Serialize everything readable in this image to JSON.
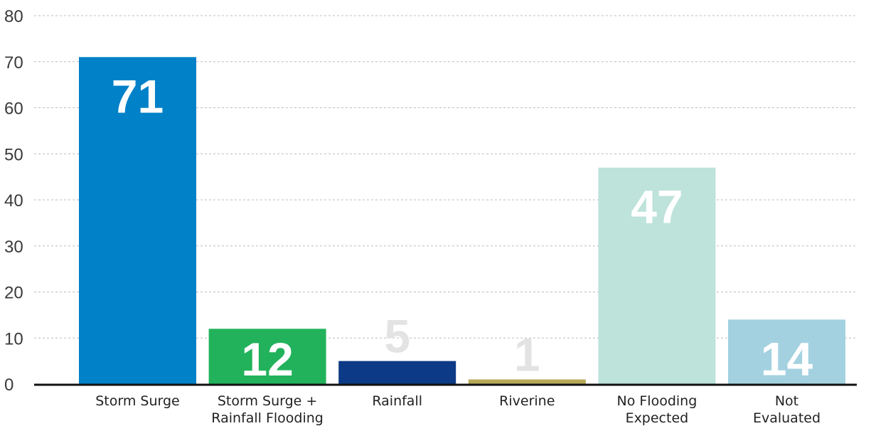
{
  "chart_data": {
    "type": "bar",
    "title": "",
    "xlabel": "",
    "ylabel": "",
    "ylim": [
      0,
      80
    ],
    "yticks": [
      0,
      10,
      20,
      30,
      40,
      50,
      60,
      70,
      80
    ],
    "grid": true,
    "legend": "none",
    "categories": [
      [
        "Storm Surge"
      ],
      [
        "Storm Surge +",
        "Rainfall Flooding"
      ],
      [
        "Rainfall"
      ],
      [
        "Riverine"
      ],
      [
        "No Flooding",
        "Expected"
      ],
      [
        "Not",
        "Evaluated"
      ]
    ],
    "values": [
      71,
      12,
      5,
      1,
      47,
      14
    ],
    "bar_colors": [
      "#0081c8",
      "#22b25b",
      "#0c3a86",
      "#b8a95a",
      "#bde3da",
      "#a3d1e0"
    ],
    "label_colors": [
      "#ffffff",
      "#ffffff",
      "#e3e3e3",
      "#e3e3e3",
      "#ffffff",
      "#ffffff"
    ]
  }
}
